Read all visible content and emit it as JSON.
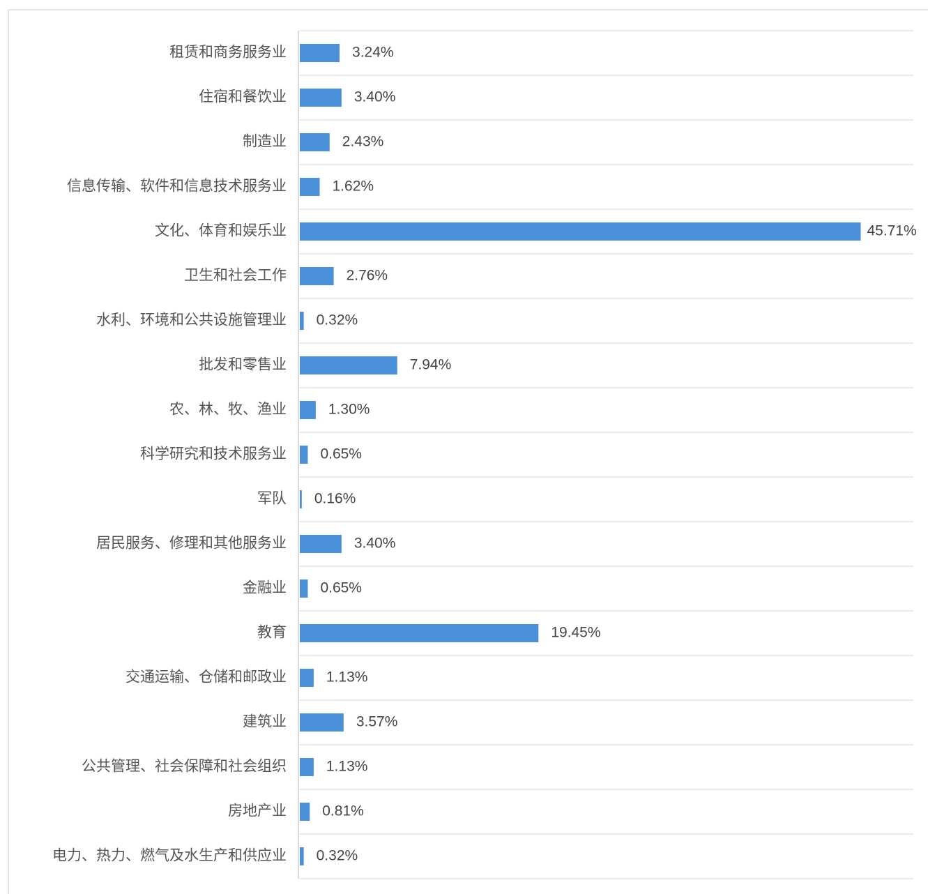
{
  "chart_data": {
    "type": "hbar",
    "categories": [
      "租赁和商务服务业",
      "住宿和餐饮业",
      "制造业",
      "信息传输、软件和信息技术服务业",
      "文化、体育和娱乐业",
      "卫生和社会工作",
      "水利、环境和公共设施管理业",
      "批发和零售业",
      "农、林、牧、渔业",
      "科学研究和技术服务业",
      "军队",
      "居民服务、修理和其他服务业",
      "金融业",
      "教育",
      "交通运输、仓储和邮政业",
      "建筑业",
      "公共管理、社会保障和社会组织",
      "房地产业",
      "电力、热力、燃气及水生产和供应业"
    ],
    "values": [
      3.24,
      3.4,
      2.43,
      1.62,
      45.71,
      2.76,
      0.32,
      7.94,
      1.3,
      0.65,
      0.16,
      3.4,
      0.65,
      19.45,
      1.13,
      3.57,
      1.13,
      0.81,
      0.32
    ],
    "value_labels": [
      "3.24%",
      "3.40%",
      "2.43%",
      "1.62%",
      "45.71%",
      "2.76%",
      "0.32%",
      "7.94%",
      "1.30%",
      "0.65%",
      "0.16%",
      "3.40%",
      "0.65%",
      "19.45%",
      "1.13%",
      "3.57%",
      "1.13%",
      "0.81%",
      "0.32%"
    ],
    "color": "#4a90d9",
    "xlim": [
      0,
      50
    ]
  }
}
